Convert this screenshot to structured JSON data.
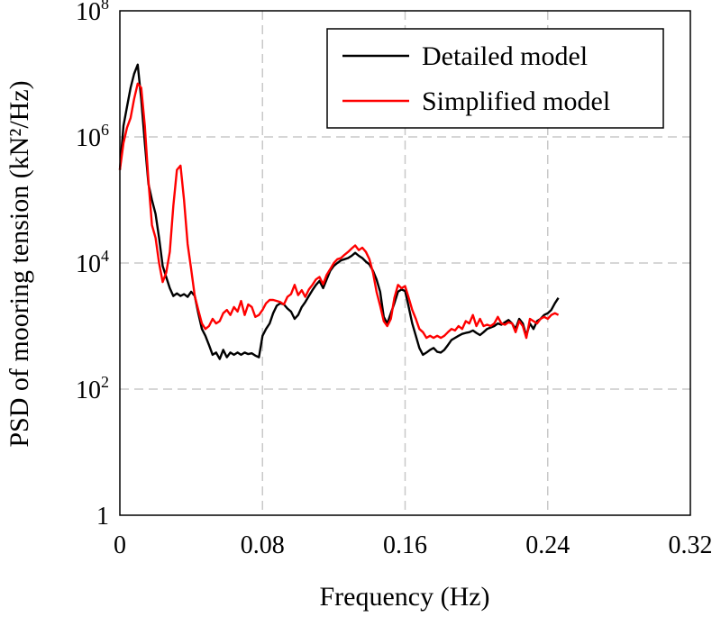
{
  "chart_data": {
    "type": "line",
    "title": "",
    "xlabel": "Frequency (Hz)",
    "ylabel": "PSD of mooring tension (kN²/Hz)",
    "xlim": [
      0,
      0.32
    ],
    "ylim": [
      1,
      100000000
    ],
    "y_scale": "log",
    "grid": true,
    "legend_position": "top-right",
    "x_ticks": [
      "0",
      "0.08",
      "0.16",
      "0.24",
      "0.32"
    ],
    "x_tick_values": [
      0,
      0.08,
      0.16,
      0.24,
      0.32
    ],
    "y_ticks": [
      {
        "base": "1",
        "exp": ""
      },
      {
        "base": "10",
        "exp": "2"
      },
      {
        "base": "10",
        "exp": "4"
      },
      {
        "base": "10",
        "exp": "6"
      },
      {
        "base": "10",
        "exp": "8"
      }
    ],
    "y_tick_values": [
      1,
      100,
      10000,
      1000000,
      100000000
    ],
    "series": [
      {
        "name": "Detailed model",
        "color": "#000000",
        "points": [
          [
            0.0,
            300000
          ],
          [
            0.002,
            1500000
          ],
          [
            0.004,
            3000000
          ],
          [
            0.006,
            6000000
          ],
          [
            0.008,
            10000000
          ],
          [
            0.01,
            14000000
          ],
          [
            0.012,
            4000000
          ],
          [
            0.014,
            800000
          ],
          [
            0.016,
            180000
          ],
          [
            0.018,
            100000
          ],
          [
            0.02,
            60000
          ],
          [
            0.022,
            25000
          ],
          [
            0.024,
            9000
          ],
          [
            0.026,
            6000
          ],
          [
            0.028,
            4000
          ],
          [
            0.03,
            3000
          ],
          [
            0.032,
            3300
          ],
          [
            0.034,
            3000
          ],
          [
            0.036,
            3200
          ],
          [
            0.038,
            2900
          ],
          [
            0.04,
            3500
          ],
          [
            0.042,
            3000
          ],
          [
            0.044,
            1600
          ],
          [
            0.046,
            900
          ],
          [
            0.048,
            700
          ],
          [
            0.05,
            500
          ],
          [
            0.052,
            350
          ],
          [
            0.054,
            380
          ],
          [
            0.056,
            300
          ],
          [
            0.058,
            420
          ],
          [
            0.06,
            320
          ],
          [
            0.062,
            380
          ],
          [
            0.064,
            350
          ],
          [
            0.066,
            380
          ],
          [
            0.068,
            350
          ],
          [
            0.07,
            380
          ],
          [
            0.072,
            360
          ],
          [
            0.074,
            370
          ],
          [
            0.076,
            340
          ],
          [
            0.078,
            320
          ],
          [
            0.08,
            700
          ],
          [
            0.082,
            900
          ],
          [
            0.084,
            1100
          ],
          [
            0.086,
            1600
          ],
          [
            0.088,
            2100
          ],
          [
            0.09,
            2300
          ],
          [
            0.092,
            2200
          ],
          [
            0.094,
            1900
          ],
          [
            0.096,
            1700
          ],
          [
            0.098,
            1300
          ],
          [
            0.1,
            1500
          ],
          [
            0.102,
            2000
          ],
          [
            0.104,
            2400
          ],
          [
            0.106,
            3000
          ],
          [
            0.108,
            3700
          ],
          [
            0.11,
            4500
          ],
          [
            0.112,
            5200
          ],
          [
            0.114,
            4000
          ],
          [
            0.116,
            5500
          ],
          [
            0.118,
            7500
          ],
          [
            0.12,
            9000
          ],
          [
            0.122,
            10000
          ],
          [
            0.124,
            11000
          ],
          [
            0.126,
            11500
          ],
          [
            0.128,
            12000
          ],
          [
            0.13,
            13000
          ],
          [
            0.132,
            14500
          ],
          [
            0.134,
            13000
          ],
          [
            0.136,
            12000
          ],
          [
            0.138,
            10500
          ],
          [
            0.14,
            9500
          ],
          [
            0.142,
            7500
          ],
          [
            0.144,
            5500
          ],
          [
            0.146,
            3500
          ],
          [
            0.148,
            1400
          ],
          [
            0.15,
            1100
          ],
          [
            0.152,
            1600
          ],
          [
            0.154,
            2300
          ],
          [
            0.156,
            3500
          ],
          [
            0.158,
            3800
          ],
          [
            0.16,
            3600
          ],
          [
            0.162,
            2000
          ],
          [
            0.164,
            1100
          ],
          [
            0.166,
            700
          ],
          [
            0.168,
            450
          ],
          [
            0.17,
            350
          ],
          [
            0.172,
            380
          ],
          [
            0.174,
            420
          ],
          [
            0.176,
            450
          ],
          [
            0.178,
            390
          ],
          [
            0.18,
            380
          ],
          [
            0.182,
            420
          ],
          [
            0.184,
            500
          ],
          [
            0.186,
            600
          ],
          [
            0.188,
            650
          ],
          [
            0.19,
            700
          ],
          [
            0.192,
            750
          ],
          [
            0.194,
            780
          ],
          [
            0.196,
            800
          ],
          [
            0.198,
            850
          ],
          [
            0.2,
            780
          ],
          [
            0.202,
            720
          ],
          [
            0.204,
            800
          ],
          [
            0.206,
            900
          ],
          [
            0.208,
            950
          ],
          [
            0.21,
            1000
          ],
          [
            0.212,
            1100
          ],
          [
            0.214,
            1050
          ],
          [
            0.216,
            1150
          ],
          [
            0.218,
            1250
          ],
          [
            0.22,
            1100
          ],
          [
            0.222,
            900
          ],
          [
            0.224,
            1300
          ],
          [
            0.226,
            1100
          ],
          [
            0.228,
            700
          ],
          [
            0.23,
            1100
          ],
          [
            0.232,
            900
          ],
          [
            0.234,
            1200
          ],
          [
            0.236,
            1300
          ],
          [
            0.238,
            1500
          ],
          [
            0.24,
            1600
          ],
          [
            0.242,
            1800
          ],
          [
            0.244,
            2300
          ],
          [
            0.246,
            2800
          ]
        ]
      },
      {
        "name": "Simplified model",
        "color": "#ff0000",
        "points": [
          [
            0.0,
            300000
          ],
          [
            0.002,
            800000
          ],
          [
            0.004,
            1400000
          ],
          [
            0.006,
            2000000
          ],
          [
            0.008,
            4000000
          ],
          [
            0.01,
            7000000
          ],
          [
            0.012,
            6000000
          ],
          [
            0.014,
            1500000
          ],
          [
            0.016,
            200000
          ],
          [
            0.018,
            40000
          ],
          [
            0.02,
            25000
          ],
          [
            0.022,
            10000
          ],
          [
            0.024,
            5000
          ],
          [
            0.026,
            7000
          ],
          [
            0.028,
            15000
          ],
          [
            0.03,
            80000
          ],
          [
            0.032,
            300000
          ],
          [
            0.034,
            350000
          ],
          [
            0.036,
            100000
          ],
          [
            0.038,
            20000
          ],
          [
            0.04,
            8000
          ],
          [
            0.042,
            3000
          ],
          [
            0.044,
            1800
          ],
          [
            0.046,
            1100
          ],
          [
            0.048,
            900
          ],
          [
            0.05,
            1000
          ],
          [
            0.052,
            1300
          ],
          [
            0.054,
            1100
          ],
          [
            0.056,
            1200
          ],
          [
            0.058,
            1600
          ],
          [
            0.06,
            1800
          ],
          [
            0.062,
            1500
          ],
          [
            0.064,
            2000
          ],
          [
            0.066,
            1700
          ],
          [
            0.068,
            2500
          ],
          [
            0.07,
            1500
          ],
          [
            0.072,
            2200
          ],
          [
            0.074,
            2000
          ],
          [
            0.076,
            1400
          ],
          [
            0.078,
            1500
          ],
          [
            0.08,
            1800
          ],
          [
            0.082,
            2300
          ],
          [
            0.084,
            2600
          ],
          [
            0.086,
            2600
          ],
          [
            0.088,
            2500
          ],
          [
            0.09,
            2400
          ],
          [
            0.092,
            2200
          ],
          [
            0.094,
            2900
          ],
          [
            0.096,
            3200
          ],
          [
            0.098,
            4500
          ],
          [
            0.1,
            3100
          ],
          [
            0.102,
            3700
          ],
          [
            0.104,
            2900
          ],
          [
            0.106,
            3800
          ],
          [
            0.108,
            4500
          ],
          [
            0.11,
            5500
          ],
          [
            0.112,
            6000
          ],
          [
            0.114,
            4600
          ],
          [
            0.116,
            6500
          ],
          [
            0.118,
            8000
          ],
          [
            0.12,
            10000
          ],
          [
            0.122,
            11500
          ],
          [
            0.124,
            12000
          ],
          [
            0.126,
            13500
          ],
          [
            0.128,
            15000
          ],
          [
            0.13,
            17000
          ],
          [
            0.132,
            19000
          ],
          [
            0.134,
            16000
          ],
          [
            0.136,
            17500
          ],
          [
            0.138,
            15000
          ],
          [
            0.14,
            11500
          ],
          [
            0.142,
            7000
          ],
          [
            0.144,
            3500
          ],
          [
            0.146,
            2100
          ],
          [
            0.148,
            1200
          ],
          [
            0.15,
            1000
          ],
          [
            0.152,
            1300
          ],
          [
            0.154,
            2800
          ],
          [
            0.156,
            4500
          ],
          [
            0.158,
            4000
          ],
          [
            0.16,
            4300
          ],
          [
            0.162,
            2800
          ],
          [
            0.164,
            1800
          ],
          [
            0.166,
            1300
          ],
          [
            0.168,
            900
          ],
          [
            0.17,
            800
          ],
          [
            0.172,
            650
          ],
          [
            0.174,
            700
          ],
          [
            0.176,
            650
          ],
          [
            0.178,
            700
          ],
          [
            0.18,
            650
          ],
          [
            0.182,
            700
          ],
          [
            0.184,
            800
          ],
          [
            0.186,
            900
          ],
          [
            0.188,
            850
          ],
          [
            0.19,
            1000
          ],
          [
            0.192,
            900
          ],
          [
            0.194,
            1200
          ],
          [
            0.196,
            1100
          ],
          [
            0.198,
            1500
          ],
          [
            0.2,
            1000
          ],
          [
            0.202,
            1300
          ],
          [
            0.204,
            1000
          ],
          [
            0.206,
            1050
          ],
          [
            0.208,
            1000
          ],
          [
            0.21,
            1100
          ],
          [
            0.212,
            1400
          ],
          [
            0.214,
            1100
          ],
          [
            0.216,
            1050
          ],
          [
            0.218,
            1150
          ],
          [
            0.22,
            1100
          ],
          [
            0.222,
            800
          ],
          [
            0.224,
            1200
          ],
          [
            0.226,
            1000
          ],
          [
            0.228,
            650
          ],
          [
            0.23,
            1300
          ],
          [
            0.232,
            1200
          ],
          [
            0.234,
            1100
          ],
          [
            0.236,
            1300
          ],
          [
            0.238,
            1400
          ],
          [
            0.24,
            1300
          ],
          [
            0.242,
            1500
          ],
          [
            0.244,
            1600
          ],
          [
            0.246,
            1500
          ]
        ]
      }
    ]
  }
}
